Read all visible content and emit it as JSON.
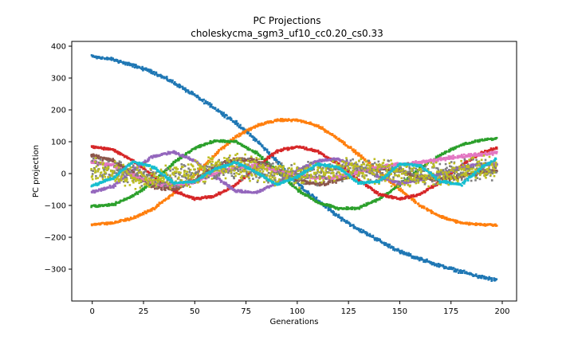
{
  "chart_data": {
    "type": "scatter",
    "title": "PC Projections",
    "subtitle": "choleskycma_sgm3_uf10_cc0.20_cs0.33",
    "xlabel": "Generations",
    "ylabel": "PC projection",
    "xlim": [
      -10,
      207
    ],
    "ylim": [
      -400,
      415
    ],
    "xticks": [
      0,
      25,
      50,
      75,
      100,
      125,
      150,
      175,
      200
    ],
    "yticks": [
      -300,
      -200,
      -100,
      0,
      100,
      200,
      300,
      400
    ],
    "grid": false,
    "legend": "none",
    "series": [
      {
        "color": "#1f77b4",
        "x": [
          0,
          10,
          20,
          30,
          40,
          50,
          60,
          70,
          80,
          90,
          100,
          110,
          120,
          130,
          140,
          150,
          160,
          170,
          180,
          190,
          197
        ],
        "y": [
          368,
          358,
          340,
          318,
          285,
          245,
          205,
          160,
          105,
          40,
          -30,
          -85,
          -135,
          -175,
          -210,
          -245,
          -268,
          -290,
          -308,
          -325,
          -335
        ],
        "spread": 6
      },
      {
        "color": "#ff7f0e",
        "x": [
          0,
          10,
          20,
          30,
          40,
          50,
          60,
          70,
          80,
          90,
          100,
          110,
          120,
          130,
          140,
          150,
          160,
          170,
          180,
          190,
          197
        ],
        "y": [
          -160,
          -155,
          -140,
          -110,
          -60,
          -5,
          60,
          115,
          150,
          168,
          168,
          150,
          110,
          60,
          5,
          -50,
          -100,
          -135,
          -155,
          -160,
          -162
        ],
        "spread": 4
      },
      {
        "color": "#2ca02c",
        "x": [
          0,
          10,
          20,
          30,
          40,
          50,
          60,
          70,
          80,
          90,
          100,
          110,
          120,
          130,
          140,
          150,
          160,
          170,
          180,
          190,
          197
        ],
        "y": [
          -103,
          -98,
          -70,
          -25,
          35,
          80,
          103,
          100,
          65,
          10,
          -50,
          -90,
          -110,
          -108,
          -80,
          -35,
          15,
          60,
          90,
          105,
          110
        ],
        "spread": 4
      },
      {
        "color": "#d62728",
        "x": [
          0,
          10,
          20,
          30,
          40,
          50,
          60,
          70,
          80,
          90,
          100,
          110,
          120,
          130,
          140,
          150,
          160,
          170,
          180,
          190,
          197
        ],
        "y": [
          85,
          75,
          40,
          -10,
          -55,
          -80,
          -70,
          -35,
          20,
          70,
          85,
          70,
          30,
          -20,
          -65,
          -80,
          -65,
          -25,
          25,
          65,
          80
        ],
        "spread": 4
      },
      {
        "color": "#9467bd",
        "x": [
          0,
          10,
          20,
          30,
          40,
          50,
          60,
          70,
          80,
          90,
          100,
          110,
          120,
          130,
          140,
          150,
          160,
          170,
          180,
          190,
          197
        ],
        "y": [
          -58,
          -40,
          10,
          55,
          68,
          40,
          -10,
          -55,
          -60,
          -30,
          10,
          40,
          45,
          20,
          -10,
          -30,
          -20,
          0,
          20,
          30,
          30
        ],
        "spread": 5
      },
      {
        "color": "#8c564b",
        "x": [
          0,
          10,
          20,
          30,
          40,
          50,
          60,
          70,
          80,
          90,
          100,
          110,
          120,
          130,
          140,
          150,
          160,
          170,
          180,
          190,
          197
        ],
        "y": [
          58,
          40,
          0,
          -40,
          -50,
          -20,
          20,
          45,
          40,
          10,
          -20,
          -35,
          -20,
          5,
          20,
          10,
          -10,
          -20,
          -10,
          5,
          10
        ],
        "spread": 8
      },
      {
        "color": "#e377c2",
        "x": [
          0,
          10,
          20,
          30,
          40,
          50,
          60,
          70,
          80,
          90,
          100,
          110,
          120,
          130,
          140,
          150,
          160,
          170,
          180,
          190,
          197
        ],
        "y": [
          38,
          25,
          -5,
          -30,
          -40,
          -25,
          0,
          20,
          25,
          10,
          -5,
          -15,
          -10,
          5,
          20,
          30,
          35,
          45,
          55,
          60,
          65
        ],
        "spread": 6
      },
      {
        "color": "#7f7f7f",
        "x": [
          0,
          10,
          20,
          30,
          40,
          50,
          60,
          70,
          80,
          90,
          100,
          110,
          120,
          130,
          140,
          150,
          160,
          170,
          180,
          190,
          197
        ],
        "y": [
          15,
          10,
          0,
          -10,
          -10,
          0,
          10,
          15,
          10,
          0,
          -5,
          0,
          10,
          15,
          10,
          0,
          -5,
          0,
          10,
          15,
          15
        ],
        "spread": 40
      },
      {
        "color": "#bcbd22",
        "x": [
          0,
          10,
          20,
          30,
          40,
          50,
          60,
          70,
          80,
          90,
          100,
          110,
          120,
          130,
          140,
          150,
          160,
          170,
          180,
          190,
          197
        ],
        "y": [
          10,
          5,
          -15,
          -20,
          -10,
          5,
          20,
          25,
          15,
          0,
          -5,
          5,
          15,
          20,
          10,
          -5,
          -10,
          0,
          10,
          15,
          15
        ],
        "spread": 45
      },
      {
        "color": "#17becf",
        "x": [
          0,
          10,
          20,
          30,
          40,
          50,
          60,
          70,
          80,
          90,
          100,
          110,
          120,
          130,
          140,
          150,
          160,
          170,
          180,
          190,
          197
        ],
        "y": [
          -38,
          -15,
          38,
          20,
          -30,
          -25,
          15,
          35,
          5,
          -35,
          -10,
          30,
          20,
          -30,
          -25,
          30,
          25,
          -25,
          -35,
          20,
          45
        ],
        "spread": 4
      }
    ]
  }
}
